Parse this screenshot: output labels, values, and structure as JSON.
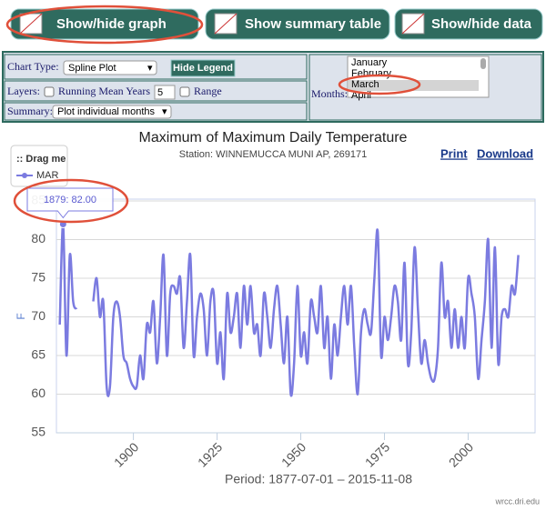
{
  "toolbar": {
    "buttons": [
      "Show/hide graph",
      "Show summary table",
      "Show/hide data"
    ]
  },
  "controls": {
    "chart_type_label": "Chart Type:",
    "chart_type": "Spline Plot",
    "hide_legend": "Hide Legend",
    "layers_label": "Layers:",
    "running_mean_label": "Running Mean Years",
    "running_mean_years": 5,
    "range_label": "Range",
    "summary_label": "Summary:",
    "summary": "Plot individual months",
    "months_label": "Months:",
    "months": [
      "January",
      "February",
      "March",
      "April"
    ]
  },
  "actions": [
    "Print",
    "Download"
  ],
  "legend_handle": ":: Drag me",
  "tooltip": "1879: 82.00",
  "footer": "wrcc.dri.edu",
  "chart_data": {
    "type": "line",
    "title": "Maximum of Maximum Daily Temperature",
    "subtitle": "Station: WINNEMUCCA MUNI AP, 269171",
    "x_label": "Period: 1877-07-01 – 2015-11-08",
    "y_label": "F",
    "x": [
      1878,
      1879,
      1880,
      1881,
      1882,
      1883,
      1884,
      1885,
      1886,
      1887,
      1888,
      1889,
      1890,
      1891,
      1892,
      1893,
      1894,
      1895,
      1896,
      1897,
      1898,
      1899,
      1900,
      1901,
      1902,
      1903,
      1904,
      1905,
      1906,
      1907,
      1908,
      1909,
      1910,
      1911,
      1912,
      1913,
      1914,
      1915,
      1916,
      1917,
      1918,
      1919,
      1920,
      1921,
      1922,
      1923,
      1924,
      1925,
      1926,
      1927,
      1928,
      1929,
      1930,
      1931,
      1932,
      1933,
      1934,
      1935,
      1936,
      1937,
      1938,
      1939,
      1940,
      1941,
      1942,
      1943,
      1944,
      1945,
      1946,
      1947,
      1948,
      1949,
      1950,
      1951,
      1952,
      1953,
      1954,
      1955,
      1956,
      1957,
      1958,
      1959,
      1960,
      1961,
      1962,
      1963,
      1964,
      1965,
      1966,
      1967,
      1968,
      1969,
      1970,
      1971,
      1972,
      1973,
      1974,
      1975,
      1976,
      1977,
      1978,
      1979,
      1980,
      1981,
      1982,
      1983,
      1984,
      1985,
      1986,
      1987,
      1988,
      1989,
      1990,
      1991,
      1992,
      1993,
      1994,
      1995,
      1996,
      1997,
      1998,
      1999,
      2000,
      2001,
      2002,
      2003,
      2004,
      2005,
      2006,
      2007,
      2008,
      2009,
      2010,
      2011,
      2012,
      2013,
      2014,
      2015
    ],
    "series": [
      {
        "name": "MAR",
        "color": "#7b7be0",
        "values": [
          69,
          82,
          65,
          78,
          72,
          71,
          null,
          null,
          null,
          null,
          72,
          75,
          70,
          72,
          61,
          61,
          70,
          72,
          70,
          65,
          64,
          62,
          61,
          61,
          65,
          62,
          69,
          68,
          72,
          64,
          70,
          78,
          65,
          73,
          74,
          73,
          75,
          66,
          72,
          78,
          65,
          70,
          73,
          71,
          65,
          72,
          73,
          64,
          68,
          62,
          73,
          68,
          70,
          73,
          66,
          74,
          69,
          74,
          68,
          69,
          65,
          73,
          70,
          66,
          71,
          74,
          69,
          64,
          70,
          60,
          64,
          74,
          65,
          68,
          64,
          72,
          70,
          68,
          74,
          66,
          70,
          62,
          69,
          65,
          70,
          74,
          69,
          74,
          66,
          60,
          68,
          71,
          69,
          68,
          75,
          81,
          65,
          70,
          67,
          70,
          74,
          72,
          67,
          77,
          64,
          68,
          79,
          71,
          64,
          67,
          64,
          62,
          62,
          66,
          77,
          70,
          72,
          66,
          71,
          66,
          70,
          66,
          75,
          73,
          70,
          62,
          67,
          72,
          80,
          66,
          79,
          64,
          70,
          71,
          70,
          74,
          73,
          78
        ]
      }
    ],
    "xlim": [
      1877,
      2020
    ],
    "xticks": [
      1900,
      1925,
      1950,
      1975,
      2000
    ],
    "ylim": [
      55,
      85
    ],
    "yticks": [
      55,
      60,
      65,
      70,
      75,
      80,
      85
    ],
    "grid": true
  }
}
